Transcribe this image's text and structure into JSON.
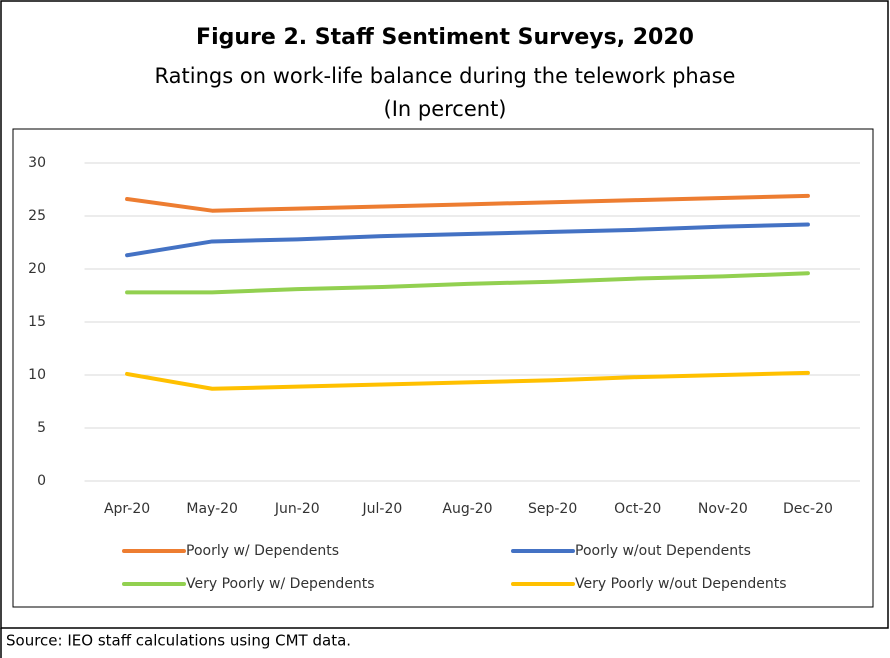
{
  "chart_data": {
    "type": "line",
    "title": "Figure 2. Staff Sentiment Surveys, 2020",
    "subtitle": "Ratings on work-life balance during the telework phase",
    "unit_note": "(In percent)",
    "source": "Source: IEO staff calculations using CMT data.",
    "categories": [
      "Apr-20",
      "May-20",
      "Jun-20",
      "Jul-20",
      "Aug-20",
      "Sep-20",
      "Oct-20",
      "Nov-20",
      "Dec-20"
    ],
    "series": [
      {
        "name": "Poorly w/ Dependents",
        "color": "#ED7D31",
        "values": [
          26.6,
          25.5,
          25.7,
          25.9,
          26.1,
          26.3,
          26.5,
          26.7,
          26.9
        ]
      },
      {
        "name": "Poorly w/out Dependents",
        "color": "#4472C4",
        "values": [
          21.3,
          22.6,
          22.8,
          23.1,
          23.3,
          23.5,
          23.7,
          24.0,
          24.2
        ]
      },
      {
        "name": "Very Poorly w/ Dependents",
        "color": "#92D050",
        "values": [
          17.8,
          17.8,
          18.1,
          18.3,
          18.6,
          18.8,
          19.1,
          19.3,
          19.6
        ]
      },
      {
        "name": "Very Poorly w/out Dependents",
        "color": "#FFC000",
        "values": [
          10.1,
          8.7,
          8.9,
          9.1,
          9.3,
          9.5,
          9.8,
          10.0,
          10.2
        ]
      }
    ],
    "ylim": [
      0,
      30
    ],
    "yticks": [
      0,
      5,
      10,
      15,
      20,
      25,
      30
    ],
    "grid": true,
    "legend": "bottom"
  }
}
